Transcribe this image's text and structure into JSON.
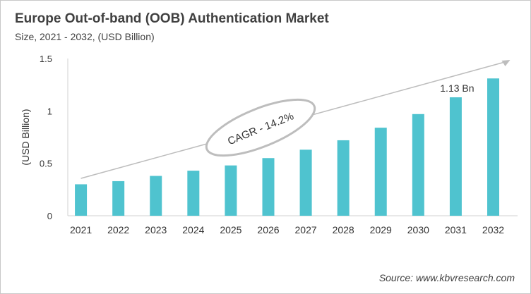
{
  "chart_data": {
    "type": "bar",
    "title": "Europe Out-of-band (OOB) Authentication Market",
    "subtitle": "Size, 2021 - 2032, (USD Billion)",
    "ylabel": "(USD Billion)",
    "xlabel": "",
    "categories": [
      "2021",
      "2022",
      "2023",
      "2024",
      "2025",
      "2026",
      "2027",
      "2028",
      "2029",
      "2030",
      "2031",
      "2032"
    ],
    "values": [
      0.3,
      0.33,
      0.38,
      0.43,
      0.48,
      0.55,
      0.63,
      0.72,
      0.84,
      0.97,
      1.13,
      1.31
    ],
    "ylim": [
      0,
      1.5
    ],
    "yticks": [
      "0",
      "0.5",
      "1",
      "1.5"
    ],
    "ytick_values": [
      0,
      0.5,
      1,
      1.5
    ],
    "grid": false,
    "bar_color": "#4fc3cf",
    "annotations": [
      {
        "category": "2031",
        "text": "1.13 Bn"
      },
      {
        "text": "CAGR - 14.2%",
        "type": "trend-arrow-ellipse"
      }
    ],
    "source": "Source: www.kbvresearch.com"
  }
}
